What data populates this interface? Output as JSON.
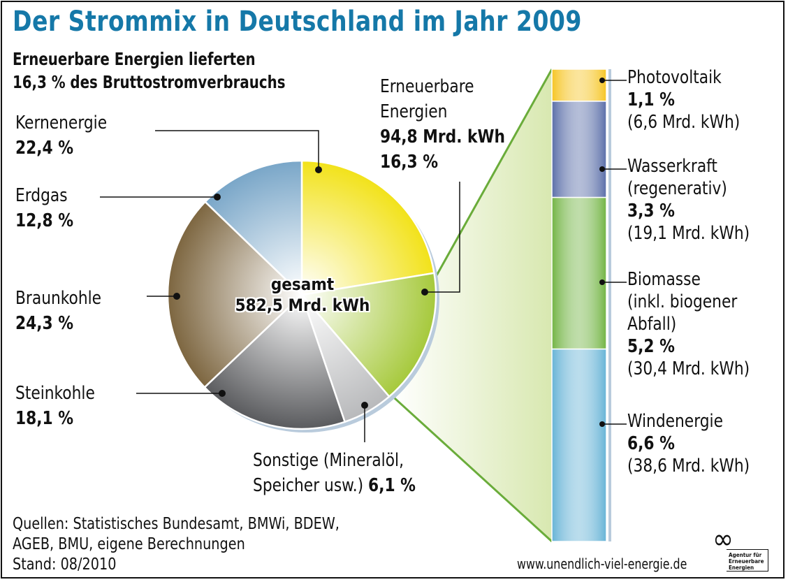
{
  "chart_data": {
    "type": "pie",
    "title": "Der Strommix in Deutschland im Jahr 2009",
    "subtitle": [
      "Erneuerbare Energien lieferten",
      "16,3 % des Bruttostromverbrauchs"
    ],
    "center_label": [
      "gesamt",
      "582,5 Mrd. kWh"
    ],
    "total_value": 582.5,
    "unit": "Mrd. kWh",
    "slices": [
      {
        "name": "Kernenergie",
        "value": 22.4,
        "label": "22,4 %",
        "color": "#f2e21a"
      },
      {
        "name": "Erneuerbare Energien",
        "value": 16.3,
        "label": "16,3 %",
        "sub_label": "94,8 Mrd. kWh",
        "color": "#a6c93c"
      },
      {
        "name": "Sonstige (Mineralöl, Speicher usw.)",
        "value": 6.1,
        "label": "6,1 %",
        "color": "#b8b9bb"
      },
      {
        "name": "Steinkohle",
        "value": 18.1,
        "label": "18,1 %",
        "color": "#5a5b5e"
      },
      {
        "name": "Braunkohle",
        "value": 24.3,
        "label": "24,3 %",
        "color": "#7d6640"
      },
      {
        "name": "Erdgas",
        "value": 12.8,
        "label": "12,8 %",
        "color": "#79a6c8"
      }
    ],
    "breakdown": {
      "type": "stacked-bar",
      "of": "Erneuerbare Energien",
      "segments": [
        {
          "name": "Photovoltaik",
          "name_lines": [
            "Photovoltaik"
          ],
          "value": 1.1,
          "label": "1,1 %",
          "energy": "(6,6 Mrd. kWh)",
          "color": "#f6c524"
        },
        {
          "name": "Wasserkraft (regenerativ)",
          "name_lines": [
            "Wasserkraft",
            "(regenerativ)"
          ],
          "value": 3.3,
          "label": "3,3 %",
          "energy": "(19,1 Mrd. kWh)",
          "color": "#5a6ea8"
        },
        {
          "name": "Biomasse (inkl. biogener Abfall)",
          "name_lines": [
            "Biomasse",
            "(inkl. biogener",
            "Abfall)"
          ],
          "value": 5.2,
          "label": "5,2 %",
          "energy": "(30,4 Mrd. kWh)",
          "color": "#72b443"
        },
        {
          "name": "Windenergie",
          "name_lines": [
            "Windenergie"
          ],
          "value": 6.6,
          "label": "6,6 %",
          "energy": "(38,6 Mrd. kWh)",
          "color": "#66b3d6"
        }
      ]
    },
    "legend": "none"
  },
  "labels": {
    "kern": {
      "name": "Kernenergie",
      "pct": "22,4 %"
    },
    "erdgas": {
      "name": "Erdgas",
      "pct": "12,8 %"
    },
    "braun": {
      "name": "Braunkohle",
      "pct": "24,3 %"
    },
    "stein": {
      "name": "Steinkohle",
      "pct": "18,1 %"
    },
    "sonstige": {
      "line1": "Sonstige (Mineralöl,",
      "line2": "Speicher usw.)",
      "pct": "6,1 %"
    },
    "ee": {
      "line1": "Erneuerbare",
      "line2": "Energien",
      "energy": "94,8 Mrd. kWh",
      "pct": "16,3 %"
    }
  },
  "footer": {
    "sources": [
      "Quellen: Statistisches Bundesamt, BMWi, BDEW,",
      "AGEB, BMU, eigene Berechnungen",
      "Stand: 08/2010"
    ],
    "url": "www.unendlich-viel-energie.de",
    "logo_text": [
      "Agentur für",
      "Erneuerbare",
      "Energien"
    ],
    "logo_symbol": "∞"
  }
}
